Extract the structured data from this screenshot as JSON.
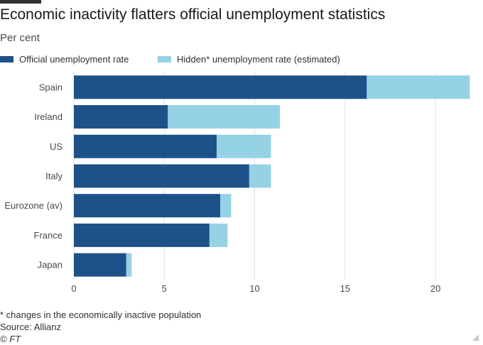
{
  "header": {
    "title": "Economic inactivity flatters official unemployment statistics",
    "subtitle": "Per cent"
  },
  "legend": {
    "official": "Official unemployment rate",
    "hidden": "Hidden* unemployment rate (estimated)"
  },
  "footer": {
    "note": "* changes in the economically inactive population",
    "source": "Source: Allianz",
    "copyright": "© FT"
  },
  "colors": {
    "official": "#1f5189",
    "hidden": "#96d2e6",
    "grid": "#e5e0da",
    "axis_text": "#4d4845"
  },
  "chart_data": {
    "type": "bar",
    "orientation": "horizontal",
    "stacked": true,
    "categories": [
      "Spain",
      "Ireland",
      "US",
      "Italy",
      "Eurozone (av)",
      "France",
      "Japan"
    ],
    "series": [
      {
        "name": "Official unemployment rate",
        "values": [
          16.2,
          5.2,
          7.9,
          9.7,
          8.1,
          7.5,
          2.9
        ]
      },
      {
        "name": "Hidden* unemployment rate (estimated)",
        "values": [
          5.7,
          6.2,
          3.0,
          1.2,
          0.6,
          1.0,
          0.3
        ]
      }
    ],
    "xticks": [
      0,
      5,
      10,
      15,
      20
    ],
    "xlim": [
      0,
      22
    ],
    "grid": true
  }
}
